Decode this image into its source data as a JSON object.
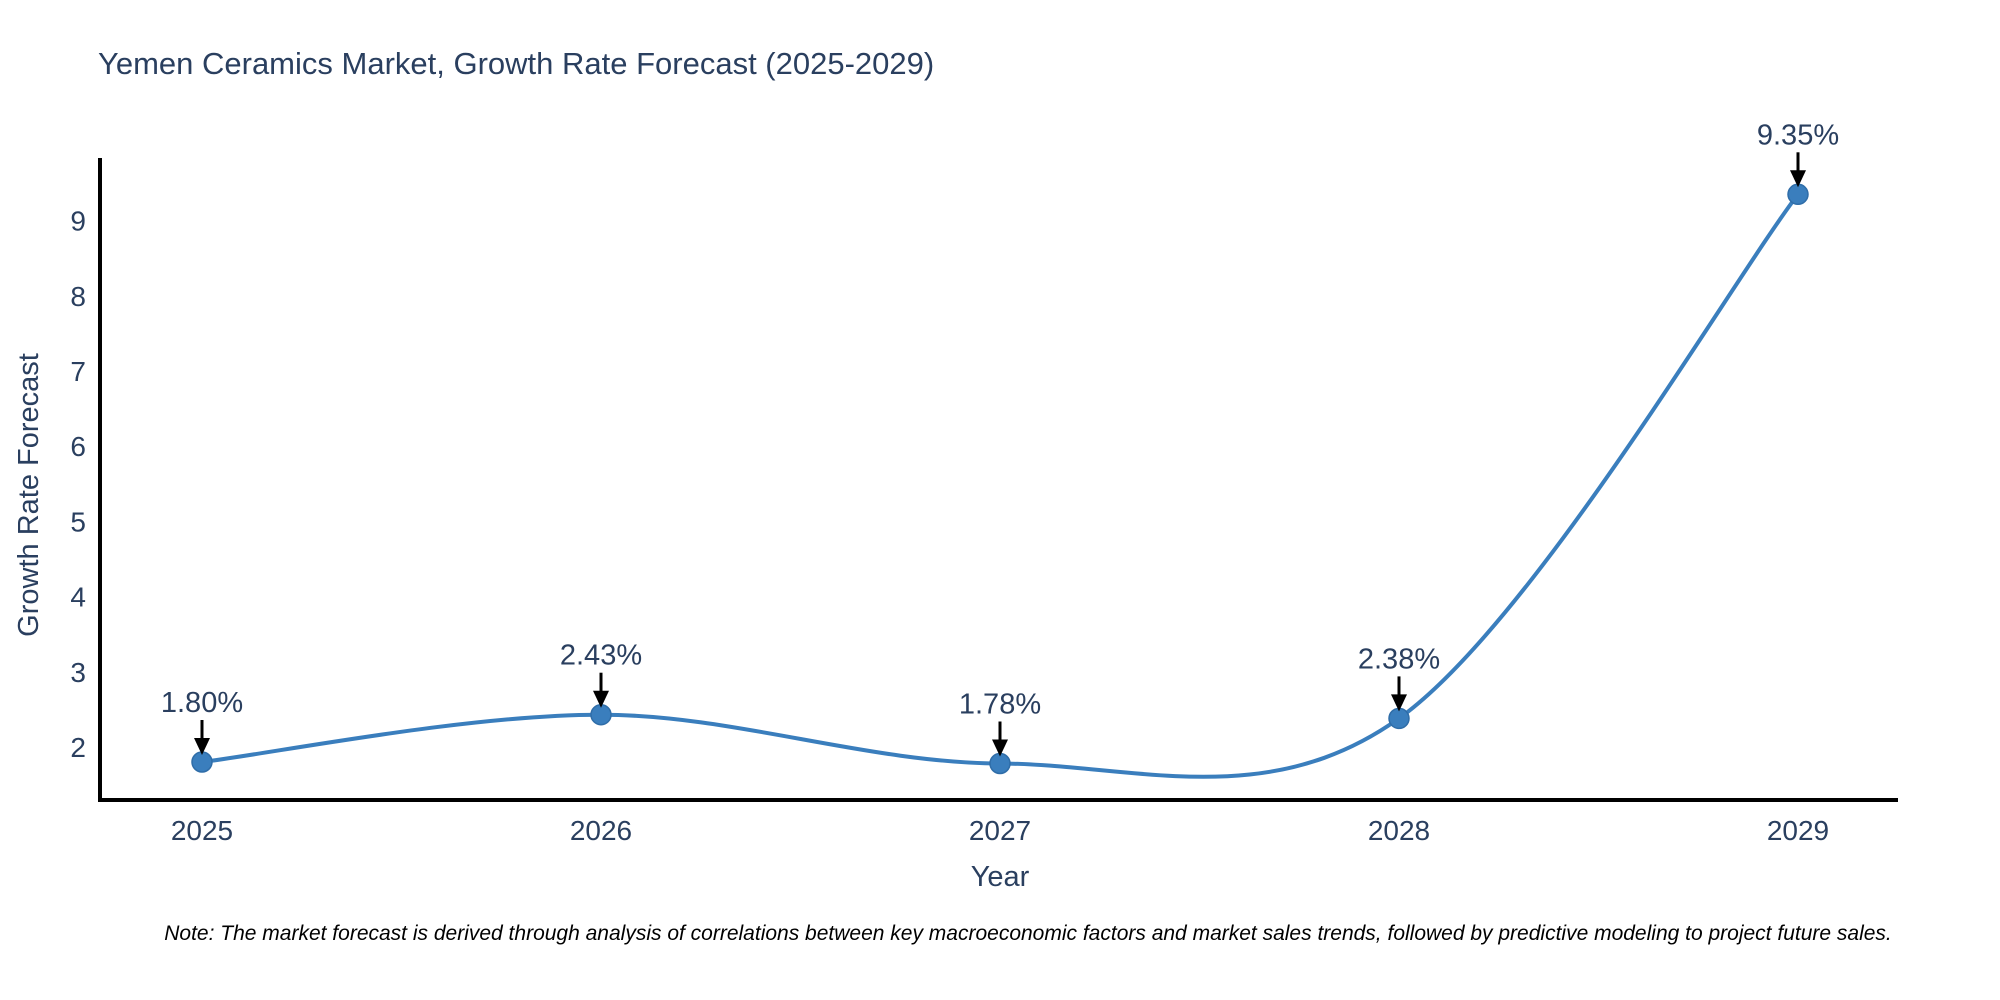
{
  "title": "Yemen Ceramics Market, Growth Rate Forecast (2025-2029)",
  "note": "Note: The market forecast is derived through analysis of correlations between key macroeconomic factors and market sales trends, followed by predictive modeling to project future sales.",
  "chart_data": {
    "type": "line",
    "title": "Yemen Ceramics Market, Growth Rate Forecast (2025-2029)",
    "xlabel": "Year",
    "ylabel": "Growth Rate Forecast",
    "categories": [
      "2025",
      "2026",
      "2027",
      "2028",
      "2029"
    ],
    "x": [
      2025,
      2026,
      2027,
      2028,
      2029
    ],
    "values": [
      1.8,
      2.43,
      1.78,
      2.38,
      9.35
    ],
    "point_labels": [
      "1.80%",
      "2.43%",
      "1.78%",
      "2.38%",
      "9.35%"
    ],
    "y_ticks": [
      2,
      3,
      4,
      5,
      6,
      7,
      8,
      9
    ],
    "ylim": [
      1.3,
      9.8
    ],
    "grid": false,
    "legend_position": "none",
    "line_shape": "spline",
    "marker": "circle",
    "annotation_style": "value label with downward black arrow above each point",
    "colors": {
      "line": "#3a7ebd",
      "marker_fill": "#3a7ebd",
      "marker_edge": "#2f6da8",
      "axis_line": "#000000",
      "text": "#2a3f5f",
      "arrow": "#000000",
      "note_text": "#000000",
      "background": "#ffffff"
    }
  }
}
